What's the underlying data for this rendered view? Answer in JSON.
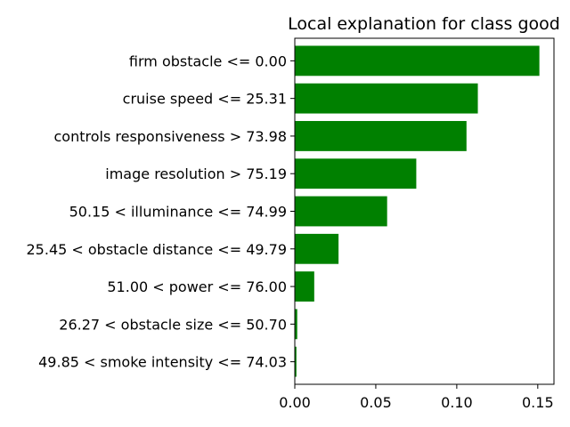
{
  "chart_data": {
    "type": "bar",
    "orientation": "horizontal",
    "title": "Local explanation for class good",
    "xlabel": "",
    "ylabel": "",
    "xlim": [
      0,
      0.16
    ],
    "xticks": [
      "0.00",
      "0.05",
      "0.10",
      "0.15"
    ],
    "grid": false,
    "legend": "none",
    "bar_color": "#008000",
    "categories": [
      "firm obstacle <= 0.00",
      "cruise speed <= 25.31",
      "controls responsiveness > 73.98",
      "image resolution > 75.19",
      "50.15 < illuminance <= 74.99",
      "25.45 < obstacle distance <= 49.79",
      "51.00 < power <= 76.00",
      "26.27 < obstacle size <= 50.70",
      "49.85 < smoke intensity <= 74.03"
    ],
    "values": [
      0.151,
      0.113,
      0.106,
      0.075,
      0.057,
      0.027,
      0.012,
      0.0015,
      0.001
    ]
  }
}
